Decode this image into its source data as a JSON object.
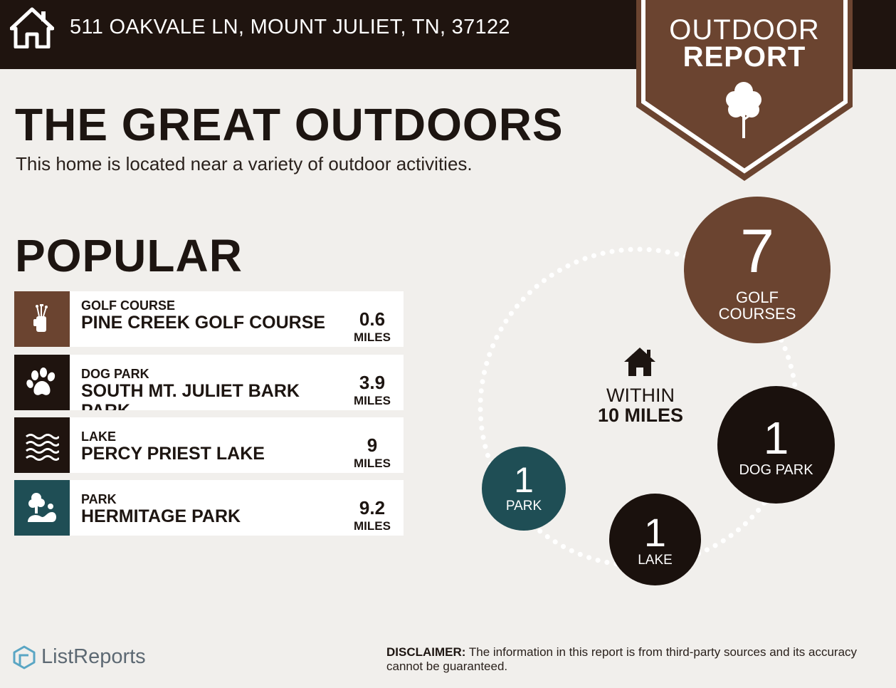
{
  "header": {
    "address": "511 OAKVALE LN, MOUNT JULIET, TN, 37122",
    "home_icon": "home-icon"
  },
  "badge": {
    "line1": "OUTDOOR",
    "line2": "REPORT",
    "icon": "tree-icon",
    "color": "#6b4430"
  },
  "main": {
    "title": "THE GREAT OUTDOORS",
    "subtitle": "This home is located near a variety of outdoor activities."
  },
  "popular": {
    "title": "POPULAR",
    "items": [
      {
        "category": "GOLF COURSE",
        "name": "PINE CREEK GOLF COURSE",
        "distance": "0.6",
        "unit": "MILES",
        "icon": "golf-bag-icon",
        "color": "#6b4430"
      },
      {
        "category": "DOG PARK",
        "name": "SOUTH MT. JULIET BARK PARK",
        "distance": "3.9",
        "unit": "MILES",
        "icon": "paw-icon",
        "color": "#1f140f"
      },
      {
        "category": "LAKE",
        "name": "PERCY PRIEST LAKE",
        "distance": "9",
        "unit": "MILES",
        "icon": "waves-icon",
        "color": "#1f140f"
      },
      {
        "category": "PARK",
        "name": "HERMITAGE PARK",
        "distance": "9.2",
        "unit": "MILES",
        "icon": "tree-park-icon",
        "color": "#1f4e55"
      }
    ]
  },
  "within": {
    "line1": "WITHIN",
    "line2": "10 MILES",
    "icon": "home-icon",
    "counts": [
      {
        "count": "7",
        "label_line1": "GOLF",
        "label_line2": "COURSES",
        "color": "#6b4430"
      },
      {
        "count": "1",
        "label_line1": "DOG PARK",
        "label_line2": "",
        "color": "#1a110d"
      },
      {
        "count": "1",
        "label_line1": "LAKE",
        "label_line2": "",
        "color": "#1a110d"
      },
      {
        "count": "1",
        "label_line1": "PARK",
        "label_line2": "",
        "color": "#1f4e55"
      }
    ]
  },
  "footer": {
    "logo": "ListReports",
    "logo_icon": "listreports-logo-icon",
    "disclaimer_label": "DISCLAIMER:",
    "disclaimer_text": " The information in this report is from third-party sources and its accuracy cannot be guaranteed."
  }
}
